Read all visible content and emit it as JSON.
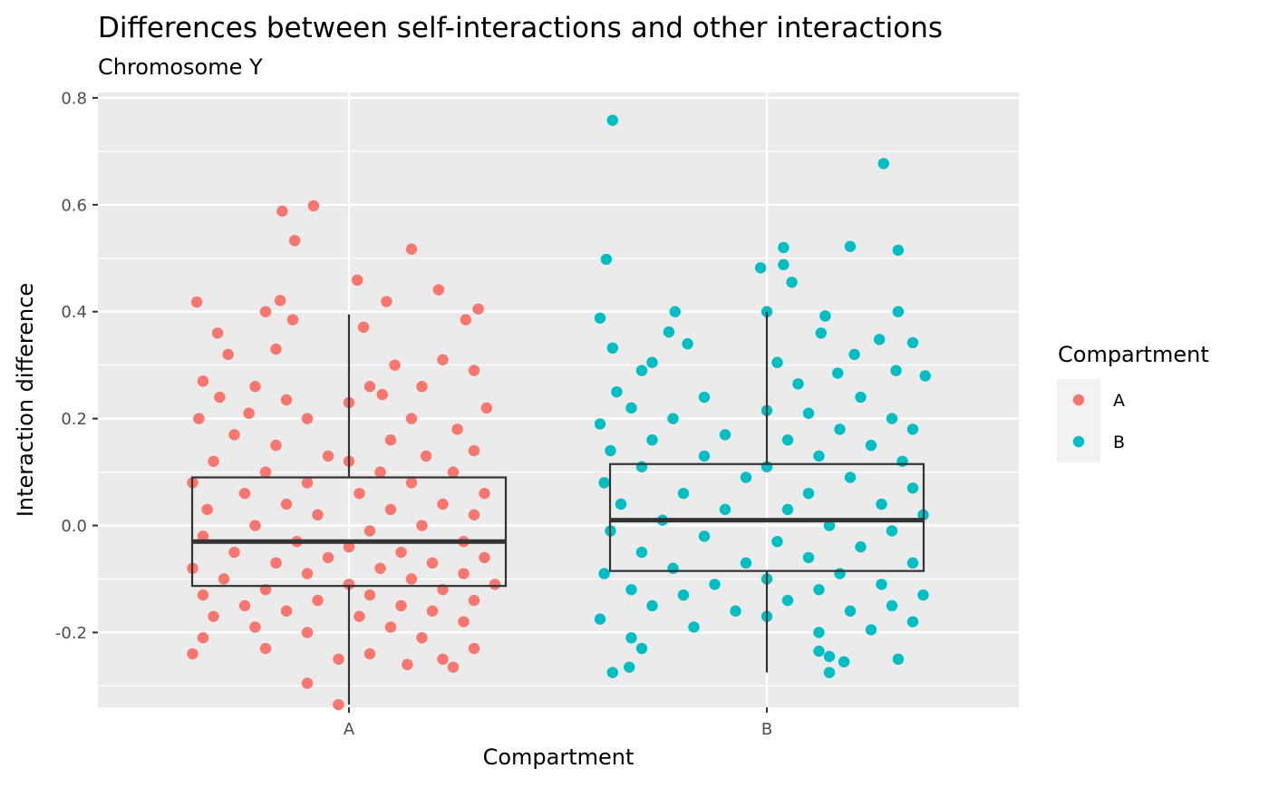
{
  "chart_data": {
    "type": "scatter",
    "title": "Differences between self-interactions and other interactions",
    "subtitle": "Chromosome Y",
    "xlabel": "Compartment",
    "ylabel": "Interaction difference",
    "categories": [
      "A",
      "B"
    ],
    "ylim": [
      -0.34,
      0.81
    ],
    "yticks": [
      -0.2,
      0.0,
      0.2,
      0.4,
      0.6,
      0.8
    ],
    "ytick_labels": [
      "-0.2",
      "0.0",
      "0.2",
      "0.4",
      "0.6",
      "0.8"
    ],
    "grid": true,
    "legend": {
      "title": "Compartment",
      "position": "right",
      "entries": [
        {
          "label": "A",
          "color": "#F8766D"
        },
        {
          "label": "B",
          "color": "#00BFC4"
        }
      ]
    },
    "colors": {
      "A": "#F8766D",
      "B": "#00BFC4",
      "panel_background": "#EBEBEB",
      "gridline": "#FFFFFF",
      "box_line": "#333333"
    },
    "boxplots": [
      {
        "category": "A",
        "q1": -0.113,
        "median": -0.03,
        "q3": 0.09,
        "whisker_low": -0.335,
        "whisker_high": 0.395
      },
      {
        "category": "B",
        "q1": -0.085,
        "median": 0.01,
        "q3": 0.115,
        "whisker_low": -0.275,
        "whisker_high": 0.4
      }
    ],
    "series": [
      {
        "name": "A",
        "points": [
          [
            -0.17,
            0.598
          ],
          [
            -0.32,
            0.588
          ],
          [
            -0.26,
            0.533
          ],
          [
            0.3,
            0.517
          ],
          [
            0.04,
            0.459
          ],
          [
            0.43,
            0.441
          ],
          [
            0.18,
            0.419
          ],
          [
            -0.33,
            0.421
          ],
          [
            -0.73,
            0.418
          ],
          [
            -0.4,
            0.4
          ],
          [
            0.62,
            0.405
          ],
          [
            0.56,
            0.385
          ],
          [
            -0.27,
            0.385
          ],
          [
            0.07,
            0.371
          ],
          [
            -0.63,
            0.36
          ],
          [
            -0.58,
            0.32
          ],
          [
            -0.35,
            0.33
          ],
          [
            0.22,
            0.3
          ],
          [
            0.45,
            0.31
          ],
          [
            0.6,
            0.29
          ],
          [
            -0.7,
            0.27
          ],
          [
            -0.45,
            0.26
          ],
          [
            0.1,
            0.26
          ],
          [
            0.35,
            0.26
          ],
          [
            -0.62,
            0.24
          ],
          [
            -0.3,
            0.235
          ],
          [
            0.16,
            0.245
          ],
          [
            0.66,
            0.22
          ],
          [
            -0.48,
            0.21
          ],
          [
            0.0,
            0.23
          ],
          [
            0.3,
            0.2
          ],
          [
            -0.72,
            0.2
          ],
          [
            -0.2,
            0.2
          ],
          [
            0.52,
            0.18
          ],
          [
            -0.55,
            0.17
          ],
          [
            0.2,
            0.16
          ],
          [
            0.6,
            0.14
          ],
          [
            -0.35,
            0.15
          ],
          [
            -0.1,
            0.13
          ],
          [
            0.37,
            0.13
          ],
          [
            -0.65,
            0.12
          ],
          [
            0.0,
            0.12
          ],
          [
            0.5,
            0.1
          ],
          [
            -0.4,
            0.1
          ],
          [
            0.15,
            0.1
          ],
          [
            -0.75,
            0.08
          ],
          [
            -0.2,
            0.08
          ],
          [
            0.3,
            0.08
          ],
          [
            0.65,
            0.06
          ],
          [
            -0.5,
            0.06
          ],
          [
            0.05,
            0.06
          ],
          [
            0.45,
            0.04
          ],
          [
            -0.3,
            0.04
          ],
          [
            -0.68,
            0.03
          ],
          [
            0.2,
            0.03
          ],
          [
            0.6,
            0.02
          ],
          [
            -0.15,
            0.02
          ],
          [
            -0.45,
            0.0
          ],
          [
            0.35,
            0.0
          ],
          [
            0.1,
            -0.01
          ],
          [
            -0.7,
            -0.02
          ],
          [
            0.55,
            -0.03
          ],
          [
            -0.25,
            -0.03
          ],
          [
            0.0,
            -0.04
          ],
          [
            -0.55,
            -0.05
          ],
          [
            0.25,
            -0.05
          ],
          [
            0.65,
            -0.06
          ],
          [
            -0.1,
            -0.06
          ],
          [
            0.4,
            -0.07
          ],
          [
            -0.35,
            -0.07
          ],
          [
            -0.75,
            -0.08
          ],
          [
            0.15,
            -0.08
          ],
          [
            0.55,
            -0.09
          ],
          [
            -0.2,
            -0.09
          ],
          [
            -0.6,
            -0.1
          ],
          [
            0.3,
            -0.1
          ],
          [
            0.0,
            -0.11
          ],
          [
            0.7,
            -0.11
          ],
          [
            -0.4,
            -0.12
          ],
          [
            0.45,
            -0.12
          ],
          [
            -0.7,
            -0.13
          ],
          [
            0.1,
            -0.13
          ],
          [
            -0.15,
            -0.14
          ],
          [
            0.6,
            -0.14
          ],
          [
            -0.5,
            -0.15
          ],
          [
            0.25,
            -0.15
          ],
          [
            -0.3,
            -0.16
          ],
          [
            0.4,
            -0.16
          ],
          [
            -0.65,
            -0.17
          ],
          [
            0.05,
            -0.17
          ],
          [
            0.55,
            -0.18
          ],
          [
            -0.45,
            -0.19
          ],
          [
            0.2,
            -0.19
          ],
          [
            -0.2,
            -0.2
          ],
          [
            0.35,
            -0.21
          ],
          [
            -0.7,
            -0.21
          ],
          [
            0.6,
            -0.23
          ],
          [
            -0.4,
            -0.23
          ],
          [
            0.1,
            -0.24
          ],
          [
            -0.75,
            -0.24
          ],
          [
            0.45,
            -0.25
          ],
          [
            -0.05,
            -0.25
          ],
          [
            0.28,
            -0.26
          ],
          [
            0.5,
            -0.265
          ],
          [
            -0.2,
            -0.295
          ],
          [
            -0.05,
            -0.335
          ]
        ]
      },
      {
        "name": "B",
        "points": [
          [
            -0.74,
            0.758
          ],
          [
            0.56,
            0.677
          ],
          [
            -0.77,
            0.498
          ],
          [
            0.4,
            0.522
          ],
          [
            0.63,
            0.515
          ],
          [
            0.08,
            0.52
          ],
          [
            0.08,
            0.488
          ],
          [
            0.12,
            0.455
          ],
          [
            -0.03,
            0.482
          ],
          [
            -0.8,
            0.388
          ],
          [
            0.0,
            0.4
          ],
          [
            -0.44,
            0.4
          ],
          [
            0.28,
            0.392
          ],
          [
            0.63,
            0.4
          ],
          [
            -0.74,
            0.332
          ],
          [
            -0.47,
            0.362
          ],
          [
            0.26,
            0.36
          ],
          [
            0.54,
            0.348
          ],
          [
            0.7,
            0.342
          ],
          [
            -0.38,
            0.34
          ],
          [
            -0.55,
            0.305
          ],
          [
            0.42,
            0.32
          ],
          [
            0.05,
            0.305
          ],
          [
            -0.6,
            0.29
          ],
          [
            0.62,
            0.29
          ],
          [
            0.34,
            0.285
          ],
          [
            -0.72,
            0.25
          ],
          [
            0.15,
            0.265
          ],
          [
            0.76,
            0.28
          ],
          [
            -0.3,
            0.24
          ],
          [
            0.45,
            0.24
          ],
          [
            -0.65,
            0.22
          ],
          [
            0.0,
            0.215
          ],
          [
            0.2,
            0.21
          ],
          [
            -0.45,
            0.2
          ],
          [
            0.6,
            0.2
          ],
          [
            -0.8,
            0.19
          ],
          [
            0.35,
            0.18
          ],
          [
            -0.2,
            0.17
          ],
          [
            0.7,
            0.18
          ],
          [
            -0.55,
            0.16
          ],
          [
            0.1,
            0.16
          ],
          [
            -0.75,
            0.14
          ],
          [
            0.5,
            0.15
          ],
          [
            -0.3,
            0.13
          ],
          [
            0.25,
            0.13
          ],
          [
            0.65,
            0.12
          ],
          [
            -0.6,
            0.11
          ],
          [
            0.0,
            0.11
          ],
          [
            -0.1,
            0.09
          ],
          [
            0.4,
            0.09
          ],
          [
            -0.78,
            0.08
          ],
          [
            0.7,
            0.07
          ],
          [
            -0.4,
            0.06
          ],
          [
            0.2,
            0.06
          ],
          [
            -0.7,
            0.04
          ],
          [
            0.55,
            0.04
          ],
          [
            -0.2,
            0.03
          ],
          [
            0.1,
            0.03
          ],
          [
            0.75,
            0.02
          ],
          [
            -0.5,
            0.01
          ],
          [
            0.3,
            0.0
          ],
          [
            -0.75,
            -0.01
          ],
          [
            0.6,
            -0.01
          ],
          [
            -0.3,
            -0.02
          ],
          [
            0.05,
            -0.03
          ],
          [
            0.45,
            -0.04
          ],
          [
            -0.6,
            -0.05
          ],
          [
            0.2,
            -0.06
          ],
          [
            -0.1,
            -0.07
          ],
          [
            0.7,
            -0.07
          ],
          [
            -0.45,
            -0.08
          ],
          [
            0.35,
            -0.09
          ],
          [
            -0.78,
            -0.09
          ],
          [
            0.0,
            -0.1
          ],
          [
            0.55,
            -0.11
          ],
          [
            -0.25,
            -0.11
          ],
          [
            -0.65,
            -0.12
          ],
          [
            0.25,
            -0.12
          ],
          [
            0.75,
            -0.13
          ],
          [
            -0.4,
            -0.13
          ],
          [
            0.1,
            -0.14
          ],
          [
            -0.55,
            -0.15
          ],
          [
            0.6,
            -0.15
          ],
          [
            -0.15,
            -0.16
          ],
          [
            0.4,
            -0.16
          ],
          [
            -0.8,
            -0.175
          ],
          [
            0.0,
            -0.17
          ],
          [
            0.7,
            -0.18
          ],
          [
            -0.35,
            -0.19
          ],
          [
            0.5,
            -0.195
          ],
          [
            0.25,
            -0.2
          ],
          [
            -0.65,
            -0.21
          ],
          [
            -0.6,
            -0.23
          ],
          [
            0.25,
            -0.235
          ],
          [
            0.3,
            -0.245
          ],
          [
            0.63,
            -0.25
          ],
          [
            0.37,
            -0.255
          ],
          [
            -0.66,
            -0.265
          ],
          [
            -0.74,
            -0.275
          ],
          [
            0.3,
            -0.275
          ]
        ]
      }
    ]
  }
}
